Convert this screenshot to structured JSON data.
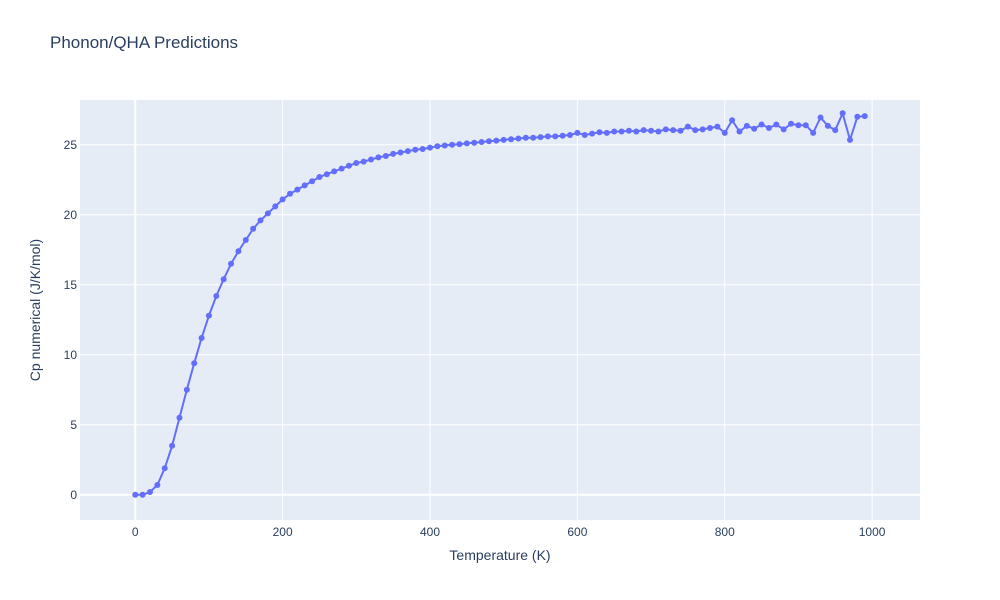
{
  "chart_data": {
    "type": "line",
    "title": "Phonon/QHA Predictions",
    "xlabel": "Temperature (K)",
    "ylabel": "Cp numerical (J/K/mol)",
    "xlim": [
      -75,
      1065
    ],
    "ylim": [
      -1.8,
      28.2
    ],
    "x_ticks": [
      0,
      200,
      400,
      600,
      800,
      1000
    ],
    "y_ticks": [
      0,
      5,
      10,
      15,
      20,
      25
    ],
    "grid": true,
    "mode": "lines+markers",
    "colors": {
      "series": "#636efa",
      "plot_bg": "#e5ecf6",
      "grid": "#ffffff",
      "text": "#2a3f5f"
    },
    "series": [
      {
        "x": [
          0,
          10,
          20,
          30,
          40,
          50,
          60,
          70,
          80,
          90,
          100,
          110,
          120,
          130,
          140,
          150,
          160,
          170,
          180,
          190,
          200,
          210,
          220,
          230,
          240,
          250,
          260,
          270,
          280,
          290,
          300,
          310,
          320,
          330,
          340,
          350,
          360,
          370,
          380,
          390,
          400,
          410,
          420,
          430,
          440,
          450,
          460,
          470,
          480,
          490,
          500,
          510,
          520,
          530,
          540,
          550,
          560,
          570,
          580,
          590,
          600,
          610,
          620,
          630,
          640,
          650,
          660,
          670,
          680,
          690,
          700,
          710,
          720,
          730,
          740,
          750,
          760,
          770,
          780,
          790,
          800,
          810,
          820,
          830,
          840,
          850,
          860,
          870,
          880,
          890,
          900,
          910,
          920,
          930,
          940,
          950,
          960,
          970,
          980,
          990
        ],
        "y": [
          0.0,
          0.0,
          0.2,
          0.7,
          1.9,
          3.5,
          5.5,
          7.5,
          9.4,
          11.2,
          12.8,
          14.2,
          15.4,
          16.5,
          17.4,
          18.2,
          19.0,
          19.6,
          20.1,
          20.6,
          21.1,
          21.5,
          21.8,
          22.1,
          22.4,
          22.7,
          22.9,
          23.1,
          23.3,
          23.5,
          23.7,
          23.8,
          23.95,
          24.1,
          24.2,
          24.35,
          24.45,
          24.55,
          24.65,
          24.7,
          24.8,
          24.9,
          24.95,
          25.0,
          25.05,
          25.1,
          25.15,
          25.2,
          25.25,
          25.3,
          25.35,
          25.4,
          25.45,
          25.5,
          25.5,
          25.55,
          25.6,
          25.6,
          25.65,
          25.7,
          25.85,
          25.7,
          25.8,
          25.9,
          25.85,
          25.95,
          25.95,
          26.0,
          25.95,
          26.05,
          26.0,
          25.95,
          26.1,
          26.05,
          26.0,
          26.3,
          26.05,
          26.1,
          26.2,
          26.3,
          25.85,
          26.75,
          25.95,
          26.35,
          26.15,
          26.45,
          26.2,
          26.45,
          26.1,
          26.5,
          26.4,
          26.4,
          25.85,
          26.95,
          26.35,
          26.05,
          27.25,
          25.35,
          27.0,
          27.05
        ]
      }
    ]
  }
}
